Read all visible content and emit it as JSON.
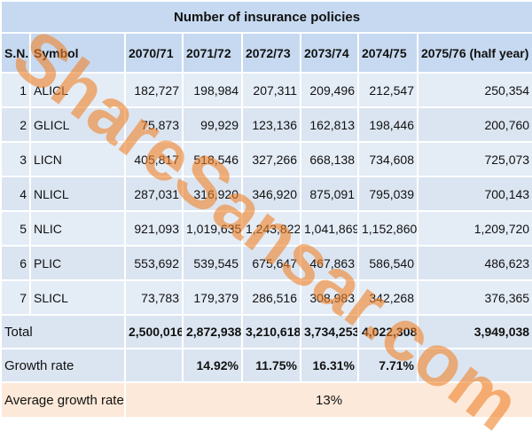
{
  "title": "Number of insurance policies",
  "watermark": "ShareSansar.com",
  "headers": [
    "S.N.",
    "Symbol",
    "2070/71",
    "2071/72",
    "2072/73",
    "2073/74",
    "2074/75",
    "2075/76 (half year)"
  ],
  "rows": [
    [
      "1",
      "ALICL",
      "182,727",
      "198,984",
      "207,311",
      "209,496",
      "212,547",
      "250,354"
    ],
    [
      "2",
      "GLICL",
      "75,873",
      "99,929",
      "123,136",
      "162,813",
      "198,446",
      "200,760"
    ],
    [
      "3",
      "LICN",
      "405,817",
      "518,546",
      "327,266",
      "668,138",
      "734,608",
      "725,073"
    ],
    [
      "4",
      "NLICL",
      "287,031",
      "316,920",
      "346,920",
      "875,091",
      "795,039",
      "700,143"
    ],
    [
      "5",
      "NLIC",
      "921,093",
      "1,019,635",
      "1,243,822",
      "1,041,869",
      "1,152,860",
      "1,209,720"
    ],
    [
      "6",
      "PLIC",
      "553,692",
      "539,545",
      "675,647",
      "467,863",
      "586,540",
      "486,623"
    ],
    [
      "7",
      "SLICL",
      "73,783",
      "179,379",
      "286,516",
      "308,983",
      "342,268",
      "376,365"
    ]
  ],
  "total": {
    "label": "Total",
    "values": [
      "2,500,016",
      "2,872,938",
      "3,210,618",
      "3,734,253",
      "4,022,308",
      "3,949,038"
    ]
  },
  "growth_rate": {
    "label": "Growth rate",
    "values": [
      null,
      "14.92%",
      "11.75%",
      "16.31%",
      "7.71%",
      null
    ]
  },
  "average_growth_rate": {
    "label": "Average growth rate",
    "value": "13%"
  }
}
